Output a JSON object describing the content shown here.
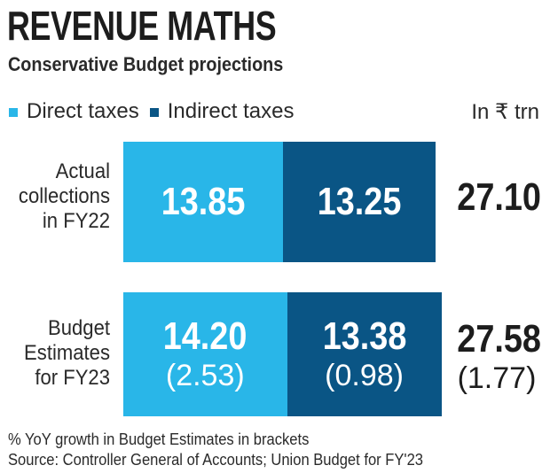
{
  "header": {
    "title": "REVENUE MATHS",
    "subtitle": "Conservative Budget projections"
  },
  "legend": {
    "direct": "Direct taxes",
    "indirect": "Indirect taxes",
    "unit": "In ₹ trn"
  },
  "colors": {
    "direct": "#29b6e8",
    "indirect": "#0a5585"
  },
  "chart_data": {
    "type": "bar",
    "title": "REVENUE MATHS",
    "subtitle": "Conservative Budget projections",
    "unit": "In ₹ trn",
    "categories": [
      "Actual collections in FY22",
      "Budget Estimates for FY23"
    ],
    "series": [
      {
        "name": "Direct taxes",
        "values": [
          13.85,
          14.2
        ],
        "growth": [
          null,
          "(2.53)"
        ]
      },
      {
        "name": "Indirect taxes",
        "values": [
          13.25,
          13.38
        ],
        "growth": [
          null,
          "(0.98)"
        ]
      }
    ],
    "totals": [
      27.1,
      27.58
    ],
    "totals_growth": [
      null,
      "(1.77)"
    ],
    "rows": [
      {
        "label_lines": [
          "Actual",
          "collections",
          "in FY22"
        ],
        "direct": "13.85",
        "indirect": "13.25",
        "total": "27.10",
        "direct_growth": "",
        "indirect_growth": "",
        "total_growth": ""
      },
      {
        "label_lines": [
          "Budget",
          "Estimates",
          "for FY23"
        ],
        "direct": "14.20",
        "indirect": "13.38",
        "total": "27.58",
        "direct_growth": "(2.53)",
        "indirect_growth": "(0.98)",
        "total_growth": "(1.77)"
      }
    ]
  },
  "footnotes": {
    "note": "% YoY growth in Budget Estimates in brackets",
    "source": "Source: Controller General of Accounts; Union Budget for FY'23"
  }
}
